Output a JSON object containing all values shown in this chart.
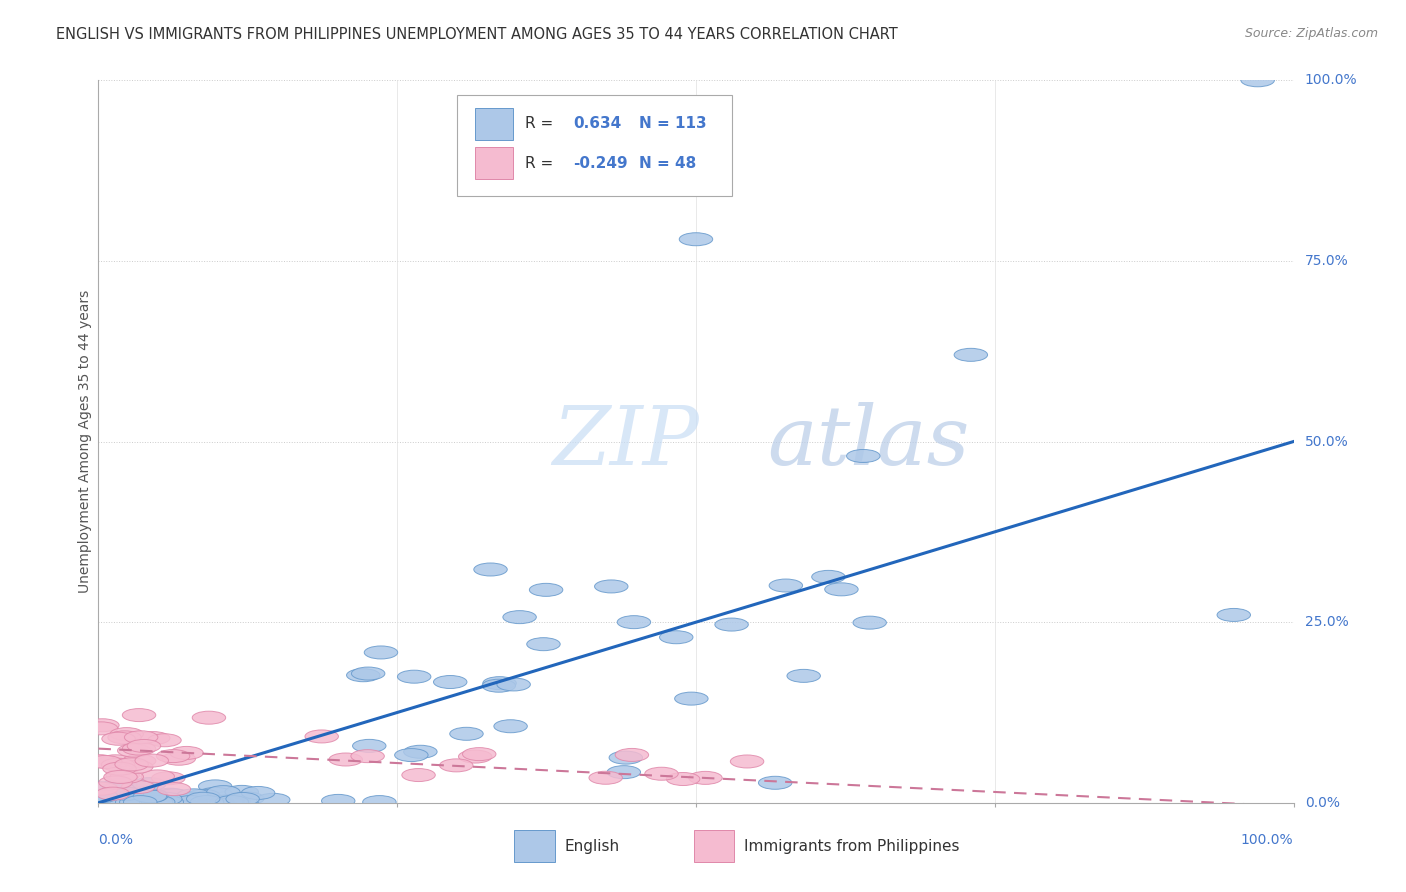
{
  "title": "ENGLISH VS IMMIGRANTS FROM PHILIPPINES UNEMPLOYMENT AMONG AGES 35 TO 44 YEARS CORRELATION CHART",
  "source": "Source: ZipAtlas.com",
  "ylabel": "Unemployment Among Ages 35 to 44 years",
  "english_color": "#adc8e8",
  "english_edge_color": "#6699cc",
  "philippines_color": "#f5bbd0",
  "philippines_edge_color": "#e088aa",
  "line_color_english": "#2266bb",
  "line_color_philippines": "#cc7799",
  "background_color": "#ffffff",
  "watermark_zip": "ZIP",
  "watermark_atlas": "atlas",
  "watermark_color_zip": "#c8daf0",
  "watermark_color_atlas": "#b0c8e8",
  "eng_R": "0.634",
  "eng_N": "113",
  "phil_R": "-0.249",
  "phil_N": "48",
  "ytick_positions": [
    0.0,
    0.25,
    0.5,
    0.75,
    1.0
  ],
  "ytick_labels": [
    "0.0%",
    "25.0%",
    "50.0%",
    "75.0%",
    "100.0%"
  ],
  "xtick_labels": [
    "0.0%",
    "100.0%"
  ],
  "axis_color": "#4477cc",
  "label_color": "#555555",
  "title_color": "#333333",
  "grid_color": "#cccccc",
  "legend_label_english": "English",
  "legend_label_philippines": "Immigrants from Philippines"
}
